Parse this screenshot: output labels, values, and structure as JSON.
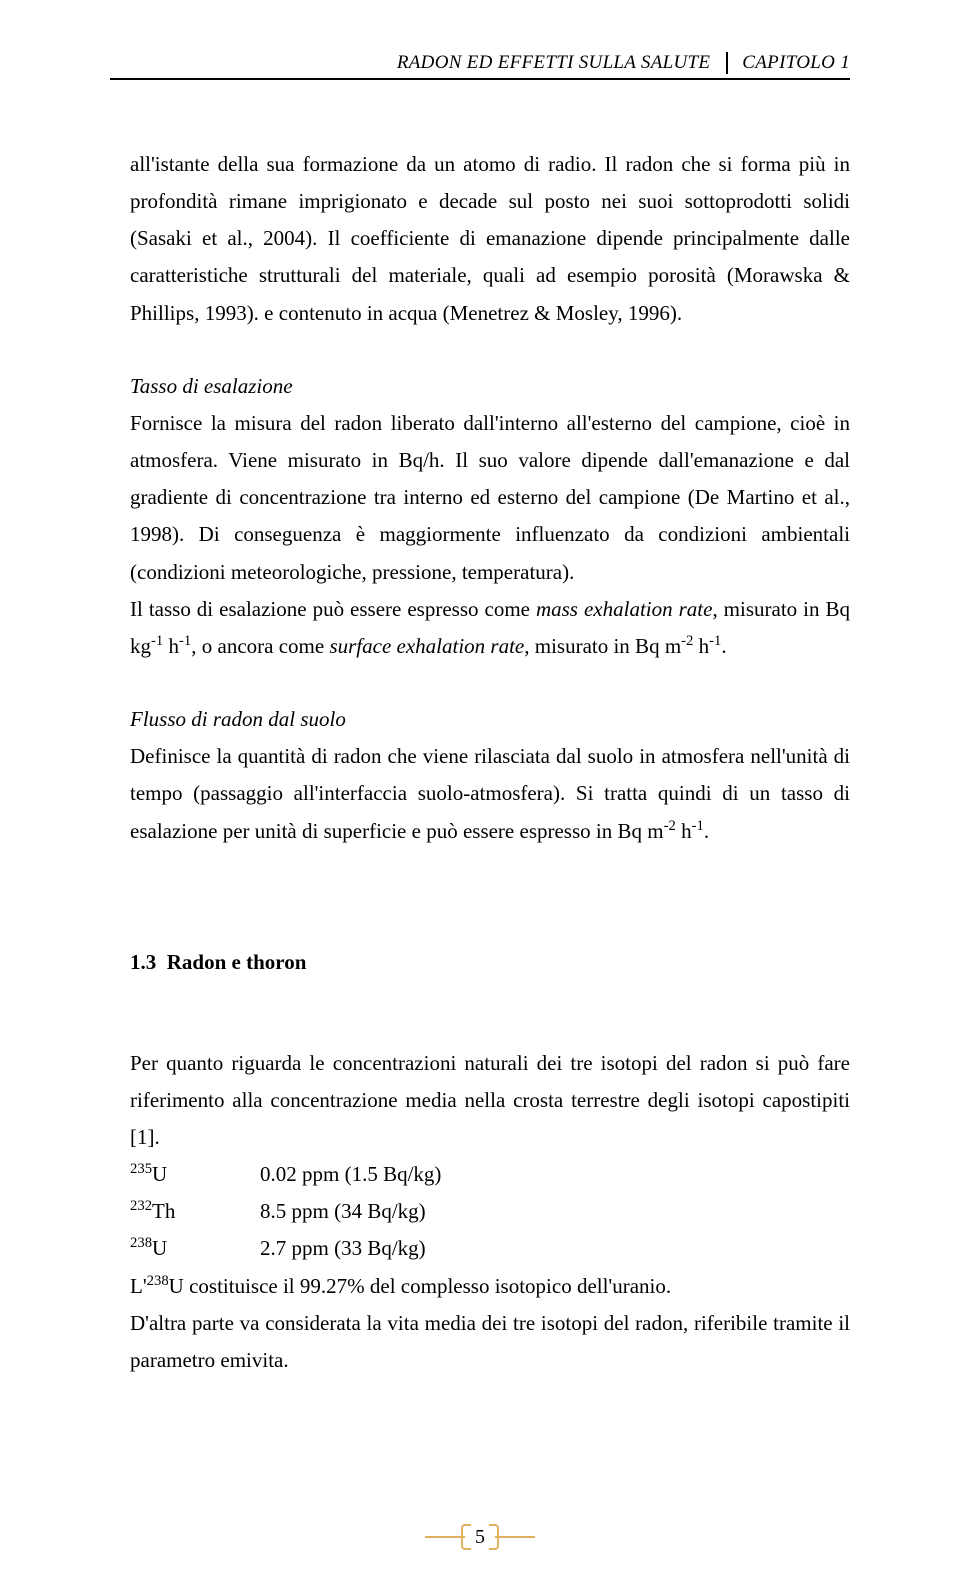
{
  "header": {
    "left": "RADON ED EFFETTI SULLA SALUTE",
    "right": "CAPITOLO 1"
  },
  "paragraphs": {
    "p1": "all'istante della sua formazione da un atomo di radio. Il radon che si forma più in profondità rimane imprigionato e decade sul posto nei suoi sottoprodotti solidi (Sasaki et al., 2004). Il coefficiente di emanazione dipende principalmente dalle caratteristiche strutturali del materiale, quali ad esempio porosità (Morawska & Phillips, 1993). e contenuto in acqua (Menetrez & Mosley, 1996).",
    "sub1": "Tasso di esalazione",
    "p2a": "Fornisce la misura del radon liberato dall'interno all'esterno del campione, cioè in atmosfera. Viene misurato in Bq/h. Il suo valore dipende dall'emanazione e dal gradiente di concentrazione tra interno ed esterno del campione (De Martino et al., 1998). Di conseguenza è maggiormente influenzato da condizioni ambientali (condizioni meteorologiche, pressione, temperatura).",
    "p2b_prefix": "Il tasso di esalazione può essere espresso come ",
    "p2b_term1": "mass exhalation rate",
    "p2b_mid1": ", misurato in Bq kg",
    "p2b_mid2": " h",
    "p2b_mid3": ", o ancora come ",
    "p2b_term2": "surface exhalation rate",
    "p2b_mid4": ", misurato in Bq m",
    "p2b_mid5": " h",
    "p2b_end": ".",
    "sub2": "Flusso di radon dal suolo",
    "p3a": "Definisce la quantità di radon che viene rilasciata dal suolo in atmosfera nell'unità di tempo (passaggio all'interfaccia suolo-atmosfera). Si tratta quindi di un tasso di esalazione per unità di superficie e può essere espresso in Bq m",
    "p3b": " h",
    "p3c": "."
  },
  "section": {
    "number": "1.3",
    "title": "Radon e thoron",
    "p4": "Per quanto riguarda le concentrazioni naturali dei tre isotopi del radon si può fare riferimento alla concentrazione media nella crosta terrestre degli isotopi capostipiti [1].",
    "isotopes": [
      {
        "mass": "235",
        "el": "U",
        "val": "0.02 ppm (1.5 Bq/kg)"
      },
      {
        "mass": "232",
        "el": "Th",
        "val": "8.5 ppm (34 Bq/kg)"
      },
      {
        "mass": "238",
        "el": "U",
        "val": "2.7 ppm (33 Bq/kg)"
      }
    ],
    "p5a": "L'",
    "p5mass": "238",
    "p5el": "U",
    "p5b": " costituisce il 99.27% del complesso isotopico dell'uranio.",
    "p6": "D'altra parte va considerata la vita media dei tre isotopi del radon, riferibile tramite il parametro emivita."
  },
  "exp": {
    "neg1": "-1",
    "neg2": "-2"
  },
  "page_number": "5"
}
